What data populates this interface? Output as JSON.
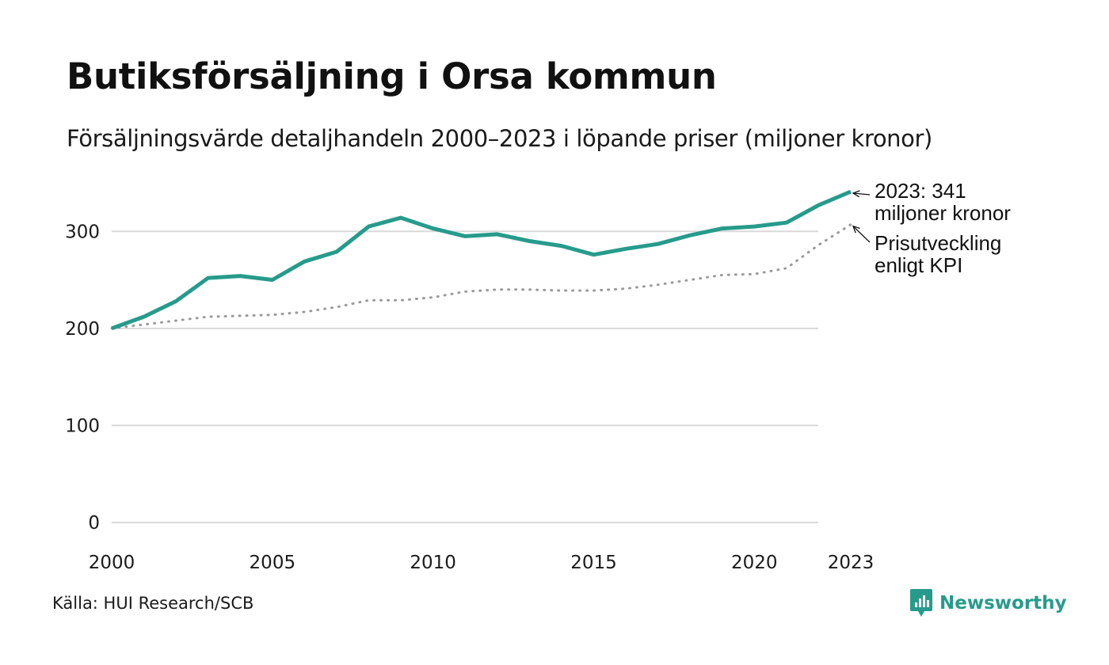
{
  "title": "Butiksförsäljning i Orsa kommun",
  "subtitle": "Försäljningsvärde detaljhandeln 2000–2023 i löpande priser (miljoner kronor)",
  "source": "Källa: HUI Research/SCB",
  "brand": "Newsworthy",
  "colors": {
    "sales": "#279b8b",
    "kpi": "#9a9a9a",
    "grid": "#d9d9d9",
    "text": "#111111"
  },
  "chart_data": {
    "type": "line",
    "title": "Butiksförsäljning i Orsa kommun",
    "xlabel": "",
    "ylabel": "",
    "x": [
      2000,
      2001,
      2002,
      2003,
      2004,
      2005,
      2006,
      2007,
      2008,
      2009,
      2010,
      2011,
      2012,
      2013,
      2014,
      2015,
      2016,
      2017,
      2018,
      2019,
      2020,
      2021,
      2022,
      2023
    ],
    "xlim": [
      2000,
      2023
    ],
    "ylim": [
      0,
      341
    ],
    "x_ticks": [
      "2000",
      "2005",
      "2010",
      "2015",
      "2020",
      "2023"
    ],
    "y_ticks": [
      "0",
      "100",
      "200",
      "300"
    ],
    "grid": true,
    "series": [
      {
        "name": "Försäljningsvärde",
        "style": "solid",
        "values": [
          200,
          212,
          228,
          252,
          254,
          250,
          269,
          279,
          305,
          314,
          303,
          295,
          297,
          290,
          285,
          276,
          282,
          287,
          296,
          303,
          305,
          309,
          327,
          341
        ]
      },
      {
        "name": "Prisutveckling enligt KPI",
        "style": "dotted",
        "values": [
          200,
          204,
          208,
          212,
          213,
          214,
          217,
          222,
          229,
          229,
          232,
          238,
          240,
          240,
          239,
          239,
          241,
          245,
          250,
          255,
          256,
          262,
          286,
          307
        ]
      }
    ],
    "annotations": [
      {
        "lines": [
          "2023: 341",
          "miljoner kronor"
        ],
        "target_series": 0,
        "x": 2023
      },
      {
        "lines": [
          "Prisutveckling",
          "enligt KPI"
        ],
        "target_series": 1,
        "x": 2023
      }
    ]
  }
}
